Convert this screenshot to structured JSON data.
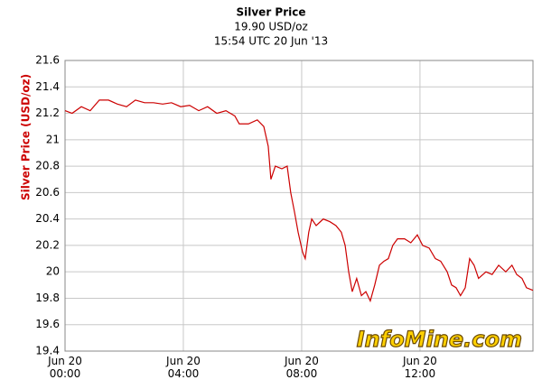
{
  "chart_data": {
    "type": "line",
    "title": "Silver Price",
    "subtitle": "19.90 USD/oz",
    "timestamp": "15:54 UTC 20 Jun '13",
    "y_label": "Silver Price (USD/oz)",
    "watermark": "InfoMine.com",
    "x": [
      0,
      0.24,
      0.55,
      0.85,
      1.16,
      1.47,
      1.77,
      2.08,
      2.38,
      2.69,
      2.99,
      3.3,
      3.6,
      3.91,
      4.21,
      4.52,
      4.82,
      5.13,
      5.44,
      5.74,
      5.89,
      6.2,
      6.5,
      6.72,
      6.87,
      6.96,
      7.11,
      7.33,
      7.51,
      7.63,
      7.76,
      7.88,
      8.03,
      8.12,
      8.24,
      8.34,
      8.49,
      8.73,
      8.95,
      9.16,
      9.34,
      9.47,
      9.59,
      9.71,
      9.86,
      10.02,
      10.17,
      10.32,
      10.47,
      10.63,
      10.78,
      10.93,
      11.08,
      11.24,
      11.48,
      11.69,
      11.91,
      12.09,
      12.31,
      12.52,
      12.7,
      12.92,
      13.07,
      13.22,
      13.37,
      13.53,
      13.68,
      13.83,
      13.98,
      14.23,
      14.44,
      14.66,
      14.9,
      15.11,
      15.27,
      15.45,
      15.6,
      15.82
    ],
    "series": [
      {
        "name": "Silver Price",
        "color": "#cc0000",
        "values": [
          21.22,
          21.2,
          21.25,
          21.22,
          21.3,
          21.3,
          21.27,
          21.25,
          21.3,
          21.28,
          21.28,
          21.27,
          21.28,
          21.25,
          21.26,
          21.22,
          21.25,
          21.2,
          21.22,
          21.18,
          21.12,
          21.12,
          21.15,
          21.1,
          20.95,
          20.7,
          20.8,
          20.78,
          20.8,
          20.6,
          20.45,
          20.3,
          20.15,
          20.1,
          20.3,
          20.4,
          20.35,
          20.4,
          20.38,
          20.35,
          20.3,
          20.2,
          20.0,
          19.85,
          19.95,
          19.82,
          19.85,
          19.78,
          19.9,
          20.05,
          20.08,
          20.1,
          20.2,
          20.25,
          20.25,
          20.22,
          20.28,
          20.2,
          20.18,
          20.1,
          20.08,
          20.0,
          19.9,
          19.88,
          19.82,
          19.88,
          20.1,
          20.05,
          19.95,
          20.0,
          19.98,
          20.05,
          20.0,
          20.05,
          19.98,
          19.95,
          19.88,
          19.86
        ]
      }
    ],
    "xlim": [
      0,
      15.82
    ],
    "xticks": [
      {
        "value": 0,
        "label": "Jun 20\n00:00"
      },
      {
        "value": 4,
        "label": "Jun 20\n04:00"
      },
      {
        "value": 8,
        "label": "Jun 20\n08:00"
      },
      {
        "value": 12,
        "label": "Jun 20\n12:00"
      }
    ],
    "ylim": [
      19.4,
      21.6
    ],
    "yticks": [
      19.4,
      19.6,
      19.8,
      20,
      20.2,
      20.4,
      20.6,
      20.8,
      21,
      21.2,
      21.4,
      21.6
    ],
    "grid": true
  }
}
